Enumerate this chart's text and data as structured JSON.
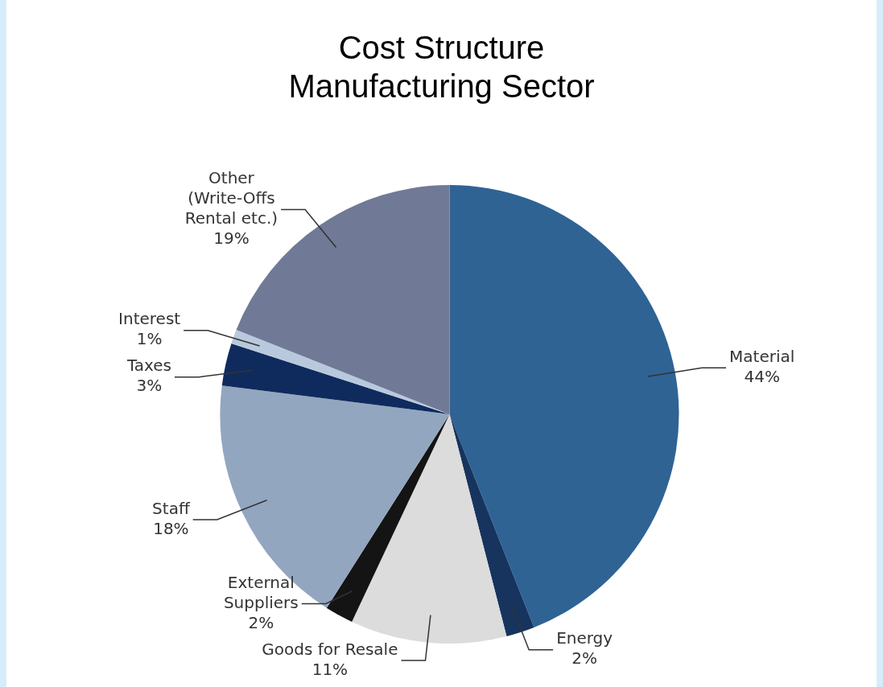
{
  "chart_data": {
    "type": "pie",
    "title": "Cost Structure Manufacturing Sector",
    "categories": [
      "Material",
      "Energy",
      "Goods for Resale",
      "External Suppliers",
      "Staff",
      "Taxes",
      "Interest",
      "Other (Write-Offs Rental etc.)"
    ],
    "values": [
      44,
      2,
      11,
      2,
      18,
      3,
      1,
      19
    ],
    "value_labels": [
      "44%",
      "2%",
      "11%",
      "2%",
      "18%",
      "3%",
      "1%",
      "19%"
    ],
    "colors": [
      "#2f6394",
      "#17345e",
      "#dcdcdc",
      "#141414",
      "#93a6c0",
      "#0f2b5e",
      "#b9c9dd",
      "#707a96"
    ],
    "legend": false
  }
}
